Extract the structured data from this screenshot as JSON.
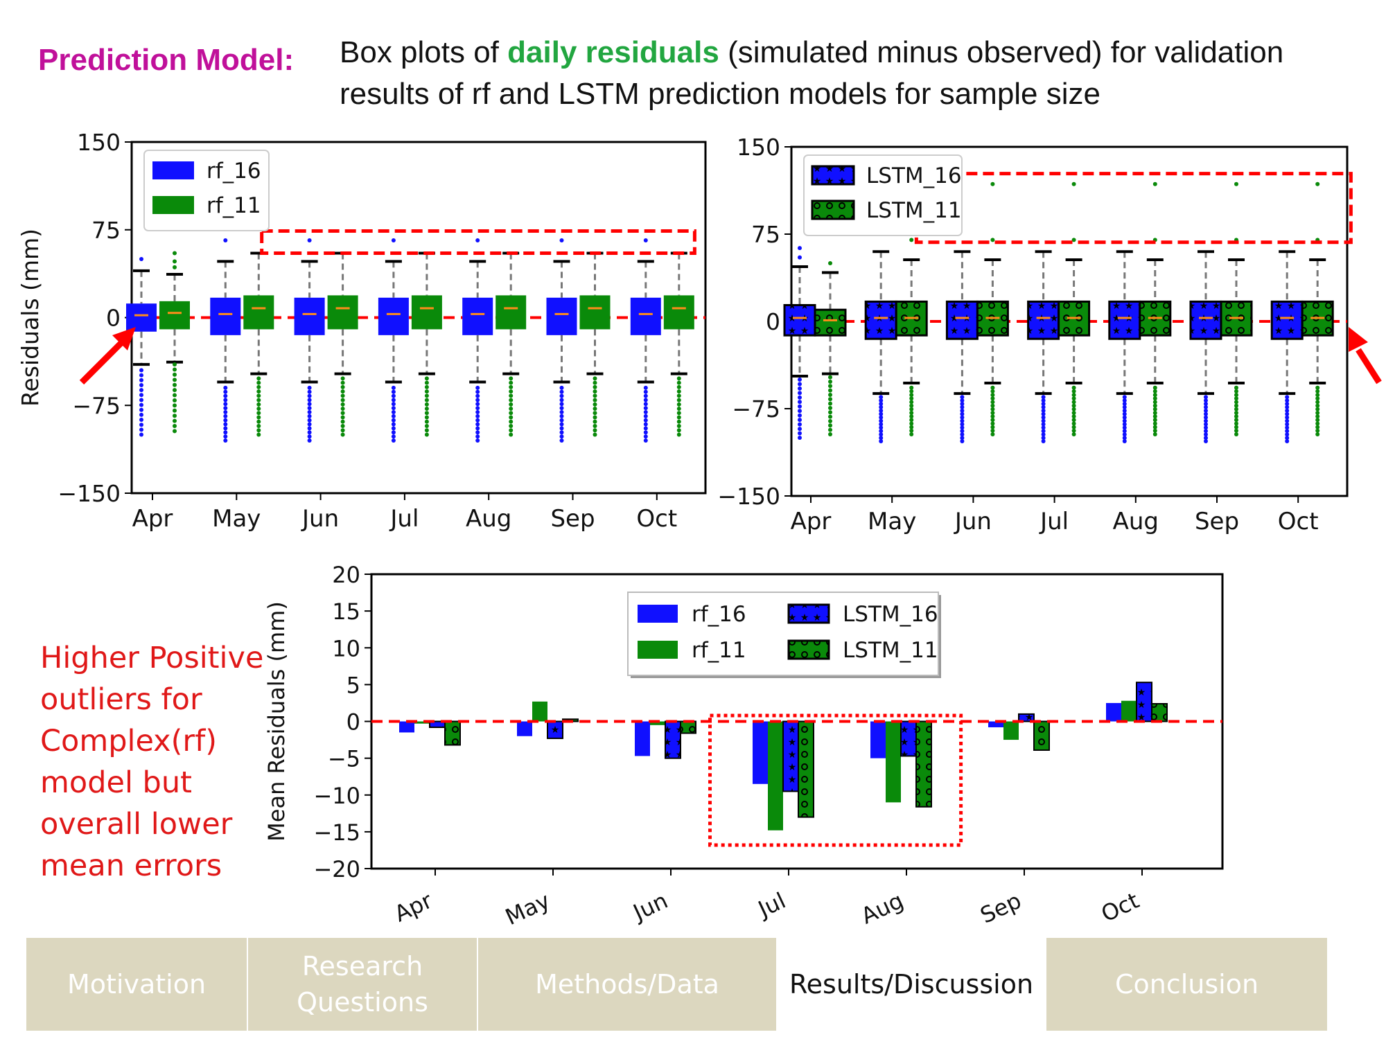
{
  "header": {
    "prefix": "Prediction Model:",
    "text_before": "Box plots of ",
    "highlight": "daily residuals",
    "text_after": " (simulated minus observed) for validation results of rf and LSTM prediction models for sample size"
  },
  "side_note": "Higher Positive outliers for Complex(rf) model but overall lower mean errors",
  "colors": {
    "blue": "#1010ff",
    "green": "#0a8a0a",
    "median": "#ff8c1a",
    "ref_line": "#ff0000",
    "annotation": "#ff0000",
    "prefix": "#c0109a",
    "highlight": "#22a640"
  },
  "nav": {
    "items": [
      {
        "label": "Motivation",
        "active": false
      },
      {
        "label": "Research Questions",
        "active": false
      },
      {
        "label": "Methods/Data",
        "active": false
      },
      {
        "label": "Results/Discussion",
        "active": true
      },
      {
        "label": "Conclusion",
        "active": false
      }
    ]
  },
  "chart_data": [
    {
      "type": "box",
      "id": "rf-box",
      "ylabel": "Residuals (mm)",
      "ylim": [
        -150,
        150
      ],
      "yticks": [
        "150",
        "75",
        "0",
        "−75",
        "−150"
      ],
      "categories": [
        "Apr",
        "May",
        "Jun",
        "Jul",
        "Aug",
        "Sep",
        "Oct"
      ],
      "legend": {
        "placement": "top-left",
        "entries": [
          "rf_16",
          "rf_11"
        ]
      },
      "reference_line": 0,
      "series": [
        {
          "name": "rf_16",
          "color": "blue",
          "boxes": [
            {
              "q1": -12,
              "median": 2,
              "q3": 12,
              "whisker_low": -40,
              "whisker_high": 40,
              "fliers_high": [
                50
              ],
              "fliers_low_from": -45,
              "fliers_low_to": -100
            },
            {
              "q1": -15,
              "median": 3,
              "q3": 17,
              "whisker_low": -55,
              "whisker_high": 48,
              "fliers_high": [
                66
              ],
              "fliers_low_from": -60,
              "fliers_low_to": -105
            },
            {
              "q1": -15,
              "median": 3,
              "q3": 17,
              "whisker_low": -55,
              "whisker_high": 48,
              "fliers_high": [
                66
              ],
              "fliers_low_from": -60,
              "fliers_low_to": -105
            },
            {
              "q1": -15,
              "median": 3,
              "q3": 17,
              "whisker_low": -55,
              "whisker_high": 48,
              "fliers_high": [
                66
              ],
              "fliers_low_from": -60,
              "fliers_low_to": -105
            },
            {
              "q1": -15,
              "median": 3,
              "q3": 17,
              "whisker_low": -55,
              "whisker_high": 48,
              "fliers_high": [
                66
              ],
              "fliers_low_from": -60,
              "fliers_low_to": -105
            },
            {
              "q1": -15,
              "median": 3,
              "q3": 17,
              "whisker_low": -55,
              "whisker_high": 48,
              "fliers_high": [
                66
              ],
              "fliers_low_from": -60,
              "fliers_low_to": -105
            },
            {
              "q1": -15,
              "median": 3,
              "q3": 17,
              "whisker_low": -55,
              "whisker_high": 48,
              "fliers_high": [
                66
              ],
              "fliers_low_from": -60,
              "fliers_low_to": -105
            }
          ]
        },
        {
          "name": "rf_11",
          "color": "green",
          "boxes": [
            {
              "q1": -10,
              "median": 4,
              "q3": 14,
              "whisker_low": -38,
              "whisker_high": 37,
              "fliers_high": [
                55,
                48,
                43
              ],
              "fliers_low_from": -40,
              "fliers_low_to": -97
            },
            {
              "q1": -10,
              "median": 8,
              "q3": 19,
              "whisker_low": -48,
              "whisker_high": 55,
              "fliers_high": [],
              "fliers_low_from": -52,
              "fliers_low_to": -100
            },
            {
              "q1": -10,
              "median": 8,
              "q3": 19,
              "whisker_low": -48,
              "whisker_high": 55,
              "fliers_high": [],
              "fliers_low_from": -52,
              "fliers_low_to": -100
            },
            {
              "q1": -10,
              "median": 8,
              "q3": 19,
              "whisker_low": -48,
              "whisker_high": 55,
              "fliers_high": [],
              "fliers_low_from": -52,
              "fliers_low_to": -100
            },
            {
              "q1": -10,
              "median": 8,
              "q3": 19,
              "whisker_low": -48,
              "whisker_high": 55,
              "fliers_high": [],
              "fliers_low_from": -52,
              "fliers_low_to": -100
            },
            {
              "q1": -10,
              "median": 8,
              "q3": 19,
              "whisker_low": -48,
              "whisker_high": 55,
              "fliers_high": [],
              "fliers_low_from": -52,
              "fliers_low_to": -100
            },
            {
              "q1": -10,
              "median": 8,
              "q3": 19,
              "whisker_low": -48,
              "whisker_high": 55,
              "fliers_high": [],
              "fliers_low_from": -52,
              "fliers_low_to": -100
            }
          ]
        }
      ],
      "highlight_box": {
        "x_from": 1.3,
        "x_to": 6.45,
        "y_from": 55,
        "y_to": 74
      }
    },
    {
      "type": "box",
      "id": "lstm-box",
      "ylabel": "",
      "ylim": [
        -150,
        150
      ],
      "yticks": [
        "150",
        "75",
        "0",
        "−75",
        "−150"
      ],
      "categories": [
        "Apr",
        "May",
        "Jun",
        "Jul",
        "Aug",
        "Sep",
        "Oct"
      ],
      "legend": {
        "placement": "top-left",
        "entries": [
          "LSTM_16",
          "LSTM_11"
        ]
      },
      "reference_line": 0,
      "series": [
        {
          "name": "LSTM_16",
          "color": "blue",
          "hatch": "stars",
          "boxes": [
            {
              "q1": -12,
              "median": 3,
              "q3": 14,
              "whisker_low": -47,
              "whisker_high": 47,
              "fliers_high": [
                63,
                55
              ],
              "fliers_low_from": -50,
              "fliers_low_to": -100
            },
            {
              "q1": -15,
              "median": 3,
              "q3": 17,
              "whisker_low": -62,
              "whisker_high": 60,
              "fliers_high": [],
              "fliers_low_from": -65,
              "fliers_low_to": -103
            },
            {
              "q1": -15,
              "median": 3,
              "q3": 17,
              "whisker_low": -62,
              "whisker_high": 60,
              "fliers_high": [],
              "fliers_low_from": -65,
              "fliers_low_to": -103
            },
            {
              "q1": -15,
              "median": 3,
              "q3": 17,
              "whisker_low": -62,
              "whisker_high": 60,
              "fliers_high": [],
              "fliers_low_from": -65,
              "fliers_low_to": -103
            },
            {
              "q1": -15,
              "median": 3,
              "q3": 17,
              "whisker_low": -62,
              "whisker_high": 60,
              "fliers_high": [],
              "fliers_low_from": -65,
              "fliers_low_to": -103
            },
            {
              "q1": -15,
              "median": 3,
              "q3": 17,
              "whisker_low": -62,
              "whisker_high": 60,
              "fliers_high": [],
              "fliers_low_from": -65,
              "fliers_low_to": -103
            },
            {
              "q1": -15,
              "median": 3,
              "q3": 17,
              "whisker_low": -62,
              "whisker_high": 60,
              "fliers_high": [],
              "fliers_low_from": -65,
              "fliers_low_to": -103
            }
          ]
        },
        {
          "name": "LSTM_11",
          "color": "green",
          "hatch": "circles",
          "boxes": [
            {
              "q1": -12,
              "median": 1,
              "q3": 10,
              "whisker_low": -45,
              "whisker_high": 42,
              "fliers_high": [
                50
              ],
              "fliers_low_from": -48,
              "fliers_low_to": -97
            },
            {
              "q1": -12,
              "median": 3,
              "q3": 17,
              "whisker_low": -53,
              "whisker_high": 53,
              "fliers_high": [
                70
              ],
              "fliers_low_from": -57,
              "fliers_low_to": -97
            },
            {
              "q1": -12,
              "median": 3,
              "q3": 17,
              "whisker_low": -53,
              "whisker_high": 53,
              "fliers_high": [
                70,
                118
              ],
              "fliers_low_from": -57,
              "fliers_low_to": -97
            },
            {
              "q1": -12,
              "median": 3,
              "q3": 17,
              "whisker_low": -53,
              "whisker_high": 53,
              "fliers_high": [
                70,
                118
              ],
              "fliers_low_from": -57,
              "fliers_low_to": -97
            },
            {
              "q1": -12,
              "median": 3,
              "q3": 17,
              "whisker_low": -53,
              "whisker_high": 53,
              "fliers_high": [
                70,
                118
              ],
              "fliers_low_from": -57,
              "fliers_low_to": -97
            },
            {
              "q1": -12,
              "median": 3,
              "q3": 17,
              "whisker_low": -53,
              "whisker_high": 53,
              "fliers_high": [
                70,
                118
              ],
              "fliers_low_from": -57,
              "fliers_low_to": -97
            },
            {
              "q1": -12,
              "median": 3,
              "q3": 17,
              "whisker_low": -53,
              "whisker_high": 53,
              "fliers_high": [
                70,
                118
              ],
              "fliers_low_from": -57,
              "fliers_low_to": -97
            }
          ]
        }
      ],
      "highlight_box": {
        "x_from": 1.3,
        "x_to": 6.65,
        "y_from": 68,
        "y_to": 127
      }
    },
    {
      "type": "bar",
      "id": "mean-bar",
      "ylabel": "Mean Residuals (mm)",
      "ylim": [
        -20,
        20
      ],
      "yticks": [
        "20",
        "15",
        "10",
        "5",
        "0",
        "−5",
        "−10",
        "−15",
        "−20"
      ],
      "categories": [
        "Apr",
        "May",
        "Jun",
        "Jul",
        "Aug",
        "Sep",
        "Oct"
      ],
      "legend": {
        "placement": "top-center",
        "entries": [
          "rf_16",
          "rf_11",
          "LSTM_16",
          "LSTM_11"
        ]
      },
      "reference_line": 0,
      "series": [
        {
          "name": "rf_16",
          "color": "blue",
          "values": [
            -1.5,
            -2.0,
            -4.7,
            -8.5,
            -5.0,
            -0.8,
            2.5
          ]
        },
        {
          "name": "rf_11",
          "color": "green",
          "values": [
            -0.3,
            2.7,
            -0.5,
            -14.8,
            -11.0,
            -2.5,
            2.8
          ]
        },
        {
          "name": "LSTM_16",
          "color": "blue",
          "hatch": "stars",
          "values": [
            -0.8,
            -2.3,
            -5.0,
            -9.5,
            -4.7,
            1.0,
            5.3
          ]
        },
        {
          "name": "LSTM_11",
          "color": "green",
          "hatch": "circles",
          "values": [
            -3.2,
            0.3,
            -1.6,
            -13.0,
            -11.6,
            -3.9,
            2.4
          ]
        }
      ],
      "highlight_box": {
        "x_from": 2.65,
        "x_to": 4.78,
        "y_from": -16.8,
        "y_to": 0.8
      }
    }
  ]
}
